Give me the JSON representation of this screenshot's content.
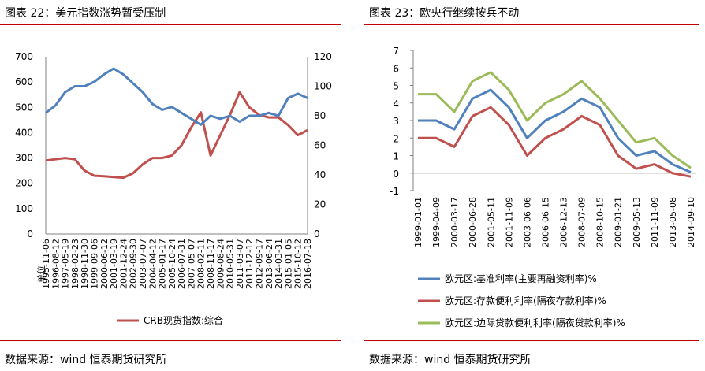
{
  "left": {
    "title": "图表 22：美元指数涨势暂受压制",
    "source": "数据来源：wind   恒泰期货研究所",
    "chart_data": {
      "type": "line",
      "unit_label": "单位",
      "x": [
        "1995-11-06",
        "1996-08-12",
        "1997-05-19",
        "1998-02-23",
        "1998-11-30",
        "1999-09-06",
        "2000-06-12",
        "2001-03-19",
        "2001-12-24",
        "2002-09-30",
        "2003-07-07",
        "2004-04-12",
        "2005-01-17",
        "2005-10-24",
        "2006-07-31",
        "2007-05-07",
        "2008-02-11",
        "2008-11-17",
        "2009-08-24",
        "2010-05-31",
        "2011-03-07",
        "2011-12-12",
        "2012-09-17",
        "2013-06-24",
        "2014-03-31",
        "2015-01-05",
        "2015-10-12",
        "2016-07-18"
      ],
      "y_left_ticks": [
        "0",
        "100",
        "200",
        "300",
        "400",
        "500",
        "600",
        "700"
      ],
      "y_right_ticks": [
        "0",
        "20",
        "40",
        "60",
        "80",
        "100",
        "120"
      ],
      "ylim_left": [
        0,
        700
      ],
      "ylim_right": [
        0,
        120
      ],
      "series": [
        {
          "name": "CRB现货指数:综合",
          "axis": "left",
          "color": "#c0504d",
          "values": [
            290,
            295,
            300,
            295,
            250,
            230,
            228,
            225,
            222,
            240,
            275,
            300,
            300,
            310,
            350,
            420,
            480,
            310,
            390,
            470,
            560,
            500,
            470,
            460,
            460,
            430,
            390,
            410
          ]
        },
        {
          "name": "",
          "axis": "right",
          "color": "#4f81bd",
          "values": [
            82,
            87,
            96,
            100,
            100,
            103,
            108,
            112,
            108,
            102,
            96,
            88,
            84,
            86,
            82,
            78,
            74,
            80,
            78,
            80,
            76,
            80,
            80,
            82,
            80,
            92,
            95,
            92
          ]
        }
      ],
      "legend": "bottom",
      "grid": false
    }
  },
  "right": {
    "title": "图表 23：欧央行继续按兵不动",
    "source": "数据来源：wind   恒泰期货研究所",
    "chart_data": {
      "type": "line",
      "x": [
        "1999-01-01",
        "1999-04-09",
        "2000-03-17",
        "2000-06-28",
        "2001-05-11",
        "2001-11-09",
        "2003-06-06",
        "2006-06-15",
        "2006-12-13",
        "2008-07-09",
        "2008-10-15",
        "2009-01-21",
        "2009-05-13",
        "2011-11-09",
        "2013-05-08",
        "2014-09-10"
      ],
      "y_ticks": [
        "7",
        "6",
        "5",
        "4",
        "3",
        "2",
        "1",
        "0",
        "-1"
      ],
      "ylim": [
        -1,
        7
      ],
      "series": [
        {
          "name": "欧元区:基准利率(主要再融资利率)%",
          "color": "#4f81bd",
          "values": [
            3.0,
            3.0,
            2.5,
            4.25,
            4.75,
            3.75,
            2.0,
            3.0,
            3.5,
            4.25,
            3.75,
            2.0,
            1.0,
            1.25,
            0.5,
            0.05
          ]
        },
        {
          "name": "欧元区:存款便利利率(隔夜存款利率)%",
          "color": "#c0504d",
          "values": [
            2.0,
            2.0,
            1.5,
            3.25,
            3.75,
            2.75,
            1.0,
            2.0,
            2.5,
            3.25,
            2.75,
            1.0,
            0.25,
            0.5,
            0.0,
            -0.2
          ]
        },
        {
          "name": "欧元区:边际贷款便利利率(隔夜贷款利率)%",
          "color": "#9bbb59",
          "values": [
            4.5,
            4.5,
            3.5,
            5.25,
            5.75,
            4.75,
            3.0,
            4.0,
            4.5,
            5.25,
            4.25,
            3.0,
            1.75,
            2.0,
            1.0,
            0.3
          ]
        }
      ],
      "legend": "bottom",
      "grid": false
    }
  }
}
